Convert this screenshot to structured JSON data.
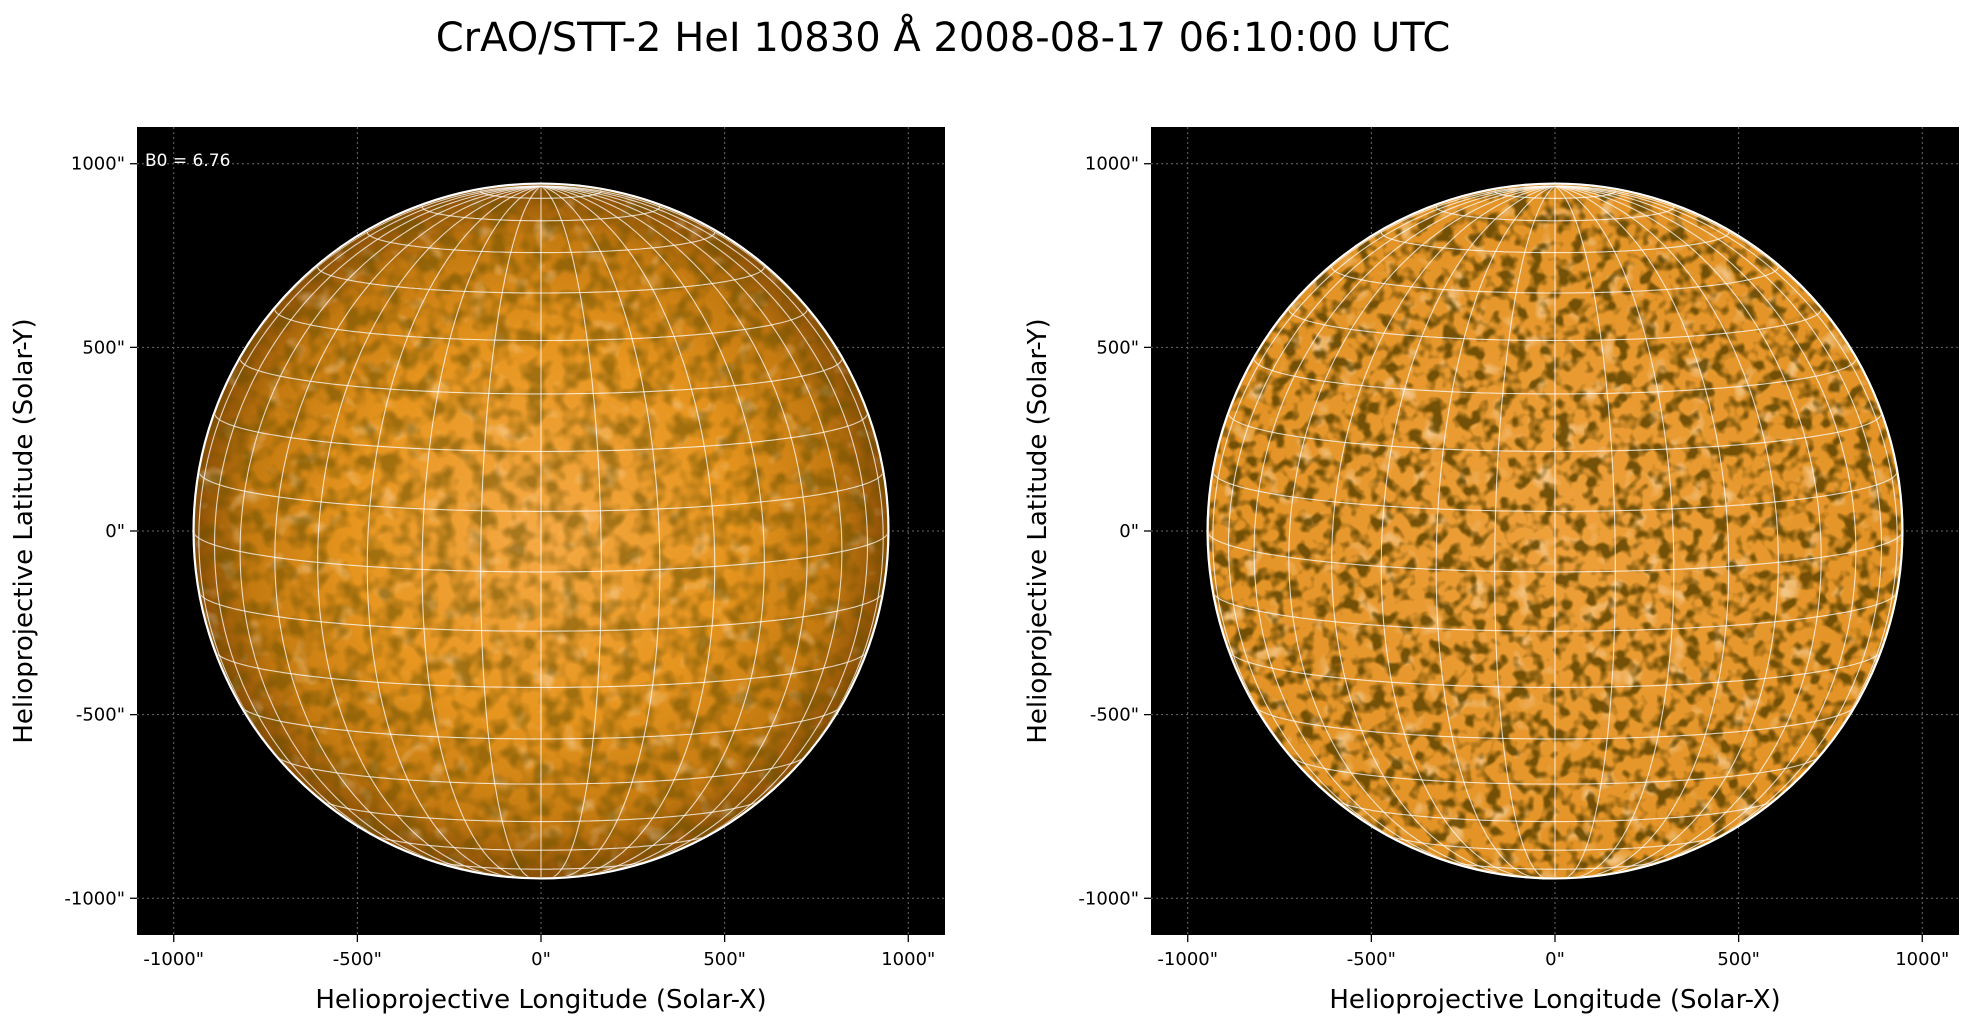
{
  "figure": {
    "title": "CrAO/STT-2 HeI 10830 Å 2008-08-17 06:10:00 UTC"
  },
  "colors": {
    "background": "#000000",
    "disk_center": "#f2a23a",
    "disk_limb": "#9a5a08",
    "grid": "#ffffff",
    "limb_circle": "#ffffff"
  },
  "panels": [
    {
      "id": "left",
      "xlabel": "Helioprojective Longitude (Solar-X)",
      "ylabel": "Helioprojective Latitude (Solar-Y)",
      "x_ticks": [
        "-1000\"",
        "-500\"",
        "0\"",
        "500\"",
        "1000\""
      ],
      "y_ticks": [
        "1000\"",
        "500\"",
        "0\"",
        "-500\"",
        "-1000\""
      ],
      "annotation": "B0 = 6.76",
      "style": "limb-darkened"
    },
    {
      "id": "right",
      "xlabel": "Helioprojective Longitude (Solar-X)",
      "ylabel": "Helioprojective Latitude (Solar-Y)",
      "x_ticks": [
        "-1000\"",
        "-500\"",
        "0\"",
        "500\"",
        "1000\""
      ],
      "y_ticks": [
        "1000\"",
        "500\"",
        "0\"",
        "-500\"",
        "-1000\""
      ],
      "annotation": "",
      "style": "flattened"
    }
  ],
  "chart_data": {
    "type": "image",
    "xlim": [
      -1100,
      1100
    ],
    "ylim": [
      -1100,
      1100
    ],
    "solar_radius_arcsec": 946,
    "b0_deg": 6.76,
    "grid_meridian_step_deg": 10,
    "grid_parallel_step_deg": 10
  }
}
